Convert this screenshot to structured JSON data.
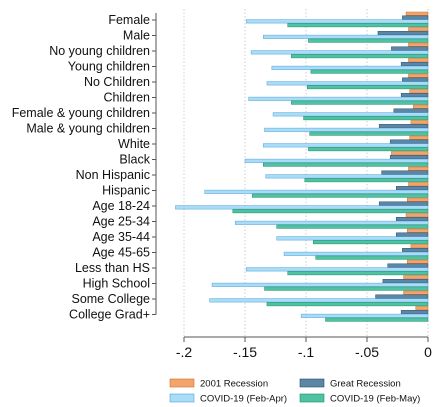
{
  "chart_data": {
    "type": "bar",
    "orientation": "horizontal",
    "categories": [
      "Female",
      "Male",
      "No young children",
      "Young children",
      "No Children",
      "Children",
      "Female & young children",
      "Male & young children",
      "White",
      "Black",
      "Non Hispanic",
      "Hispanic",
      "Age 18-24",
      "Age 25-34",
      "Age 35-44",
      "Age 45-65",
      "Less than HS",
      "High School",
      "Some College",
      "College Grad+"
    ],
    "series": [
      {
        "name": "2001 Recession",
        "color": "#f4a46a",
        "edge": "#c9702a",
        "values": [
          -0.018,
          -0.016,
          -0.016,
          -0.016,
          -0.016,
          -0.015,
          -0.012,
          -0.014,
          -0.015,
          -0.03,
          -0.016,
          -0.016,
          -0.017,
          -0.018,
          -0.017,
          -0.014,
          -0.017,
          -0.02,
          -0.02,
          -0.01
        ]
      },
      {
        "name": "Great Recession",
        "color": "#5b86a6",
        "edge": "#2c4f6a",
        "values": [
          -0.021,
          -0.041,
          -0.03,
          -0.022,
          -0.021,
          -0.022,
          -0.028,
          -0.04,
          -0.031,
          -0.031,
          -0.038,
          -0.026,
          -0.04,
          -0.026,
          -0.026,
          -0.021,
          -0.033,
          -0.037,
          -0.043,
          -0.022
        ]
      },
      {
        "name": "COVID-19 (Feb-Apr)",
        "color": "#a9dcf7",
        "edge": "#4fa3d9",
        "values": [
          -0.149,
          -0.135,
          -0.145,
          -0.128,
          -0.132,
          -0.147,
          -0.127,
          -0.134,
          -0.135,
          -0.15,
          -0.133,
          -0.183,
          -0.207,
          -0.158,
          -0.124,
          -0.118,
          -0.149,
          -0.177,
          -0.179,
          -0.104
        ]
      },
      {
        "name": "COVID-19 (Feb-May)",
        "color": "#4fc2a2",
        "edge": "#1e8a6c",
        "values": [
          -0.115,
          -0.098,
          -0.112,
          -0.096,
          -0.099,
          -0.112,
          -0.102,
          -0.097,
          -0.098,
          -0.135,
          -0.101,
          -0.144,
          -0.16,
          -0.124,
          -0.094,
          -0.092,
          -0.115,
          -0.134,
          -0.132,
          -0.084
        ]
      }
    ],
    "xlim": [
      -0.2,
      0
    ],
    "xticks": [
      -0.2,
      -0.15,
      -0.1,
      -0.05,
      0
    ],
    "xtick_labels": [
      "-.2",
      "-.15",
      "-.1",
      "-.05",
      "0"
    ],
    "grid": "vertical dotted",
    "legend_position": "bottom"
  }
}
